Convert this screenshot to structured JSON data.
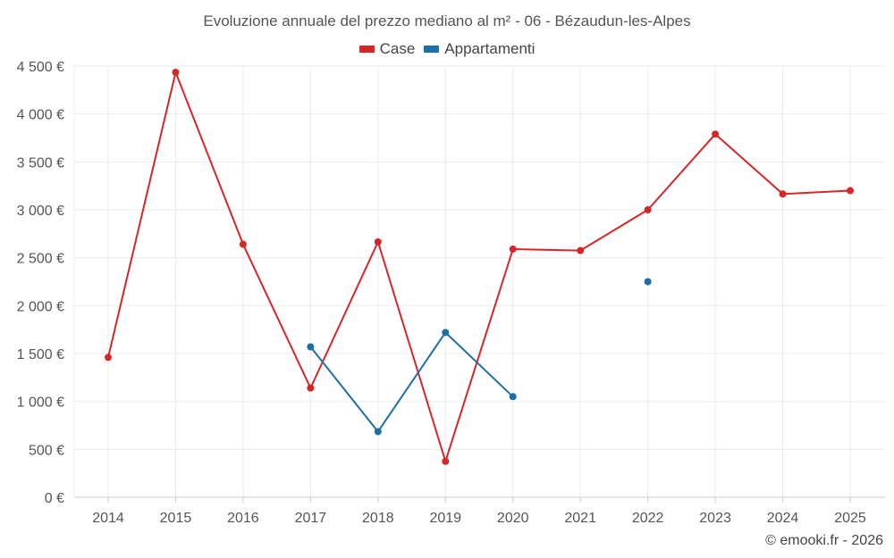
{
  "chart_data": {
    "type": "line",
    "title": "Evoluzione annuale del prezzo mediano al m² - 06 - Bézaudun-les-Alpes",
    "categories": [
      "2014",
      "2015",
      "2016",
      "2017",
      "2018",
      "2019",
      "2020",
      "2021",
      "2022",
      "2023",
      "2024",
      "2025"
    ],
    "series": [
      {
        "name": "Case",
        "color": "#d62728",
        "values": [
          1460,
          4435,
          2640,
          1140,
          2665,
          375,
          2590,
          2575,
          3000,
          3790,
          3165,
          3200
        ]
      },
      {
        "name": "Appartamenti",
        "color": "#1f6fa6",
        "values": [
          null,
          null,
          null,
          1570,
          685,
          1720,
          1050,
          null,
          2250,
          null,
          null,
          null
        ]
      }
    ],
    "ylim": [
      0,
      4500
    ],
    "yticks": [
      0,
      500,
      1000,
      1500,
      2000,
      2500,
      3000,
      3500,
      4000,
      4500
    ],
    "ytick_labels": [
      "0 €",
      "500 €",
      "1 000 €",
      "1 500 €",
      "2 000 €",
      "2 500 €",
      "3 000 €",
      "3 500 €",
      "4 000 €",
      "4 500 €"
    ],
    "xlabel": "",
    "ylabel": "",
    "grid": true,
    "legend_position": "top-center"
  },
  "credit": "© emooki.fr - 2026"
}
